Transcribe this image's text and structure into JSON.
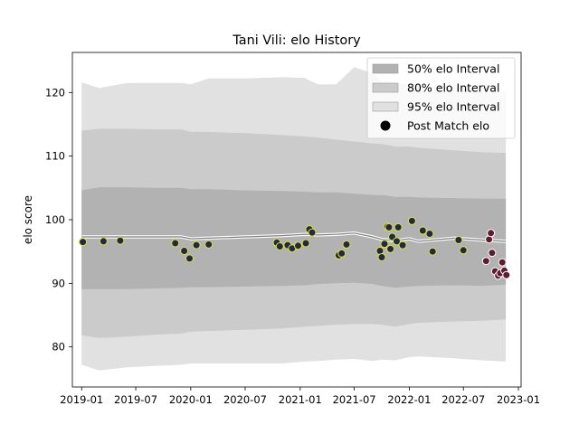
{
  "chart_data": {
    "type": "scatter",
    "title": "Tani Vili: elo History",
    "xlabel": "",
    "ylabel": "elo score",
    "xlim": [
      "2018-12-01",
      "2023-01-10"
    ],
    "ylim": [
      73.7,
      126.3
    ],
    "x_ticks": [
      "2019-01",
      "2019-07",
      "2020-01",
      "2020-07",
      "2021-01",
      "2021-07",
      "2022-01",
      "2022-07",
      "2023-01"
    ],
    "y_ticks": [
      80,
      90,
      100,
      110,
      120
    ],
    "grid": false,
    "legend_position": "top-right",
    "colors": {
      "band_50": "#b2b2b2",
      "band_80": "#cbcbcb",
      "band_95": "#e1e1e1",
      "line_inner": "#7f7f7f",
      "line_outer": "#ffffff",
      "point_face": "#1f2a44",
      "point_edge": "#e0e03a",
      "recent_face": "#5e1c2e",
      "recent_edge": "#ffffff",
      "legend_marker": "#000000"
    },
    "legend": [
      {
        "label": "50% elo Interval",
        "kind": "band_50"
      },
      {
        "label": "80% elo Interval",
        "kind": "band_80"
      },
      {
        "label": "95% elo Interval",
        "kind": "band_95"
      },
      {
        "label": "Post Match elo",
        "kind": "marker"
      }
    ],
    "bands": {
      "x": [
        "2019-01-01",
        "2019-03-01",
        "2019-06-01",
        "2019-09-01",
        "2019-12-01",
        "2020-01-01",
        "2020-03-01",
        "2020-07-01",
        "2020-11-01",
        "2021-01-15",
        "2021-03-01",
        "2021-05-01",
        "2021-07-01",
        "2021-09-01",
        "2021-10-01",
        "2021-11-15",
        "2022-01-01",
        "2022-02-01",
        "2022-06-01",
        "2022-09-01",
        "2022-11-20"
      ],
      "center": [
        97.3,
        97.3,
        97.3,
        97.3,
        97.3,
        97.0,
        97.1,
        97.3,
        97.5,
        97.7,
        97.6,
        97.7,
        97.9,
        97.3,
        96.9,
        96.7,
        97.0,
        96.6,
        97.1,
        96.8,
        96.6
      ],
      "p50_low": [
        89.1,
        89.1,
        89.1,
        89.2,
        89.3,
        89.4,
        89.4,
        89.5,
        89.6,
        89.7,
        89.9,
        90.0,
        90.1,
        89.9,
        89.6,
        89.3,
        89.5,
        89.6,
        89.7,
        89.6,
        89.8
      ],
      "p50_high": [
        104.6,
        105.1,
        105.1,
        105.0,
        105.0,
        104.8,
        104.8,
        104.6,
        104.5,
        104.4,
        104.3,
        104.3,
        104.1,
        103.9,
        103.9,
        103.6,
        103.6,
        103.5,
        103.4,
        103.3,
        103.3
      ],
      "p80_low": [
        81.8,
        81.4,
        81.6,
        81.9,
        82.1,
        82.4,
        82.5,
        82.7,
        82.9,
        83.2,
        83.3,
        83.5,
        83.6,
        83.6,
        83.5,
        83.2,
        83.6,
        83.8,
        84.0,
        84.1,
        84.3
      ],
      "p80_high": [
        114.0,
        114.3,
        114.3,
        114.2,
        114.2,
        113.8,
        113.8,
        113.6,
        113.3,
        113.1,
        112.9,
        112.6,
        112.3,
        112.0,
        111.9,
        111.5,
        111.5,
        111.3,
        110.9,
        110.6,
        110.5
      ],
      "p95_low": [
        77.2,
        76.3,
        76.8,
        77.0,
        77.2,
        77.4,
        77.4,
        77.4,
        77.4,
        77.7,
        77.8,
        78.0,
        78.1,
        77.8,
        78.0,
        77.9,
        78.4,
        78.5,
        78.2,
        77.9,
        77.7
      ],
      "p95_high": [
        121.6,
        120.7,
        121.5,
        121.5,
        121.5,
        121.3,
        122.2,
        122.2,
        122.4,
        122.3,
        121.3,
        121.3,
        124.0,
        123.0,
        121.8,
        121.5,
        121.2,
        121.2,
        120.8,
        120.6,
        120.1
      ]
    },
    "points": [
      {
        "date": "2019-01-05",
        "elo": 96.5
      },
      {
        "date": "2019-03-15",
        "elo": 96.6
      },
      {
        "date": "2019-05-10",
        "elo": 96.7
      },
      {
        "date": "2019-11-10",
        "elo": 96.3
      },
      {
        "date": "2019-12-10",
        "elo": 95.1
      },
      {
        "date": "2019-12-28",
        "elo": 93.9
      },
      {
        "date": "2020-01-20",
        "elo": 96.0
      },
      {
        "date": "2020-03-01",
        "elo": 96.1
      },
      {
        "date": "2020-10-15",
        "elo": 96.4
      },
      {
        "date": "2020-10-25",
        "elo": 95.8
      },
      {
        "date": "2020-11-20",
        "elo": 96.0
      },
      {
        "date": "2020-12-05",
        "elo": 95.5
      },
      {
        "date": "2020-12-25",
        "elo": 95.9
      },
      {
        "date": "2021-01-20",
        "elo": 96.3
      },
      {
        "date": "2021-02-01",
        "elo": 98.5
      },
      {
        "date": "2021-02-10",
        "elo": 98.0
      },
      {
        "date": "2021-05-10",
        "elo": 94.4
      },
      {
        "date": "2021-05-20",
        "elo": 94.7
      },
      {
        "date": "2021-06-05",
        "elo": 96.1
      },
      {
        "date": "2021-09-25",
        "elo": 95.1
      },
      {
        "date": "2021-10-01",
        "elo": 94.1
      },
      {
        "date": "2021-10-10",
        "elo": 96.2
      },
      {
        "date": "2021-10-20",
        "elo": 98.9
      },
      {
        "date": "2021-10-25",
        "elo": 98.8
      },
      {
        "date": "2021-10-30",
        "elo": 95.4
      },
      {
        "date": "2021-11-05",
        "elo": 97.3
      },
      {
        "date": "2021-11-20",
        "elo": 96.6
      },
      {
        "date": "2021-11-25",
        "elo": 98.8
      },
      {
        "date": "2021-12-10",
        "elo": 96.0
      },
      {
        "date": "2022-01-10",
        "elo": 99.8
      },
      {
        "date": "2022-02-15",
        "elo": 98.3
      },
      {
        "date": "2022-03-10",
        "elo": 97.8
      },
      {
        "date": "2022-03-20",
        "elo": 95.0
      },
      {
        "date": "2022-06-15",
        "elo": 96.8
      },
      {
        "date": "2022-07-01",
        "elo": 95.2
      }
    ],
    "recent_points": [
      {
        "date": "2022-09-15",
        "elo": 93.5
      },
      {
        "date": "2022-09-25",
        "elo": 96.9
      },
      {
        "date": "2022-10-01",
        "elo": 97.9
      },
      {
        "date": "2022-10-05",
        "elo": 94.8
      },
      {
        "date": "2022-10-15",
        "elo": 91.9
      },
      {
        "date": "2022-10-25",
        "elo": 91.2
      },
      {
        "date": "2022-11-01",
        "elo": 91.6
      },
      {
        "date": "2022-11-08",
        "elo": 93.3
      },
      {
        "date": "2022-11-15",
        "elo": 92.0
      },
      {
        "date": "2022-11-22",
        "elo": 91.3
      }
    ]
  }
}
